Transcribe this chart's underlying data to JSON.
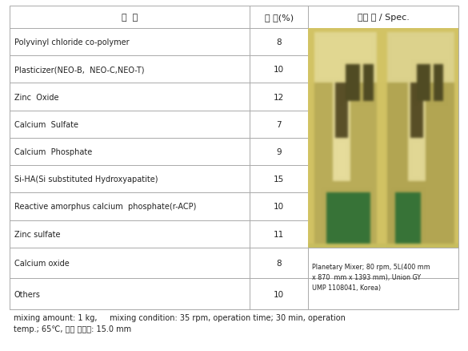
{
  "header": [
    "성  분",
    "함 량(%)",
    "설비 명 / Spec."
  ],
  "rows": [
    [
      "Polyvinyl chloride co-polymer",
      "8"
    ],
    [
      "Plasticizer(NEO-B,  NEO-C,NEO-T)",
      "10"
    ],
    [
      "Zinc  Oxide",
      "12"
    ],
    [
      "Calcium  Sulfate",
      "7"
    ],
    [
      "Calcium  Phosphate",
      "9"
    ],
    [
      "Si-HA(Si substituted Hydroxyapatite)",
      "15"
    ],
    [
      "Reactive amorphus calcium  phosphate(r-ACP)",
      "10"
    ],
    [
      "Zinc sulfate",
      "11"
    ],
    [
      "Calcium oxide",
      "8"
    ],
    [
      "Others",
      "10"
    ]
  ],
  "spec_text": "Planetary Mixer; 80 rpm, 5L(400 mm\nx 870  mm x 1393 mm), Union GY\nUMP 1108041, Korea)",
  "footer_line1": "mixing amount: 1 kg,     mixing condition: 35 rpm, operation time; 30 min, operation",
  "footer_line2": "temp.; 65℃, 평균 점주도: 15.0 mm",
  "border_color": "#aaaaaa",
  "text_color": "#222222",
  "fig_width": 5.85,
  "fig_height": 4.39,
  "dpi": 100
}
